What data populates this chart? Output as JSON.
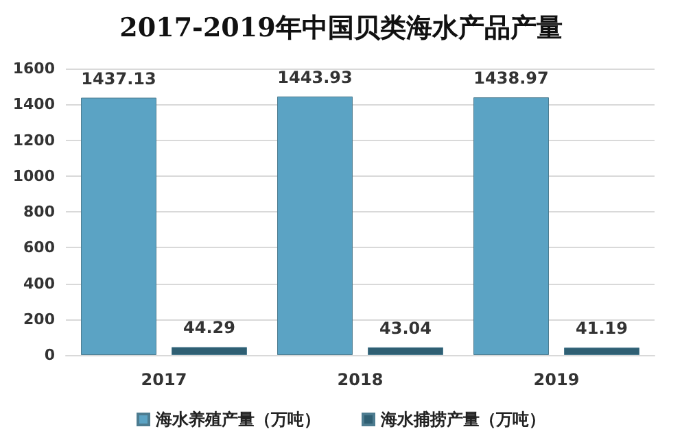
{
  "chart_data": {
    "type": "bar",
    "title": "2017-2019年中国贝类海水产品产量",
    "categories": [
      "2017",
      "2018",
      "2019"
    ],
    "series": [
      {
        "name": "海水养殖产量（万吨）",
        "color": "#5ba3c4",
        "values": [
          1437.13,
          1443.93,
          1438.97
        ]
      },
      {
        "name": "海水捕捞产量（万吨）",
        "color": "#2f5f73",
        "values": [
          44.29,
          43.04,
          41.19
        ]
      }
    ],
    "ylim": [
      0,
      1600
    ],
    "yticks": [
      0,
      200,
      400,
      600,
      800,
      1000,
      1200,
      1400,
      1600
    ],
    "grid": "y",
    "legend": "bottom",
    "data_labels": true
  }
}
